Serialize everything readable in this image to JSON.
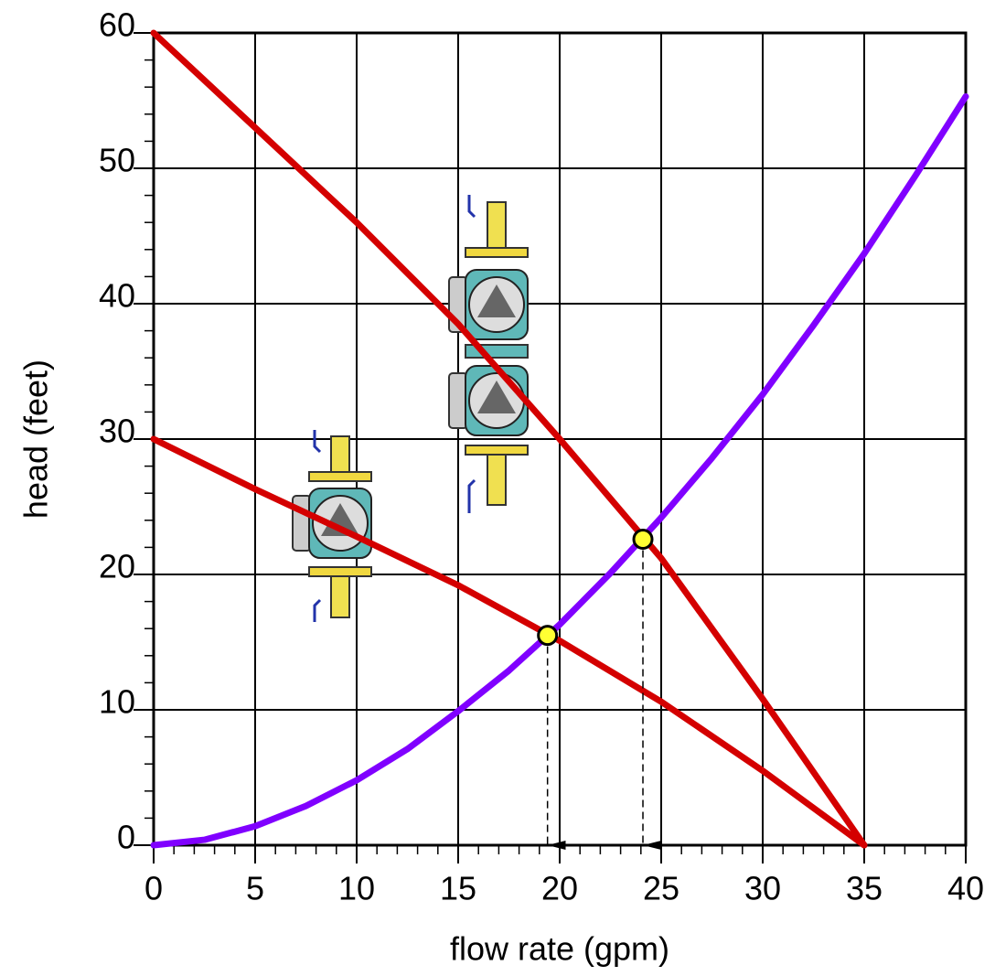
{
  "chart_data": {
    "type": "line",
    "x_label": "flow rate (gpm)",
    "y_label": "head (feet)",
    "xlim": [
      0,
      40
    ],
    "ylim": [
      0,
      60
    ],
    "xticks": [
      0,
      5,
      10,
      15,
      20,
      25,
      30,
      35,
      40
    ],
    "yticks": [
      0,
      10,
      20,
      30,
      40,
      50,
      60
    ],
    "grid": true,
    "series": [
      {
        "color": "#d40000",
        "x": [
          0,
          5,
          10,
          15,
          20,
          25,
          30,
          35
        ],
        "values": [
          30,
          26.3,
          22.8,
          19.2,
          15.1,
          10.6,
          5.5,
          0
        ]
      },
      {
        "color": "#d40000",
        "x": [
          0,
          5,
          10,
          15,
          20,
          25,
          30,
          35
        ],
        "values": [
          60,
          53,
          46,
          38.5,
          30,
          21.2,
          10.8,
          0
        ]
      },
      {
        "color": "#8000ff",
        "x": [
          0,
          2.5,
          5,
          7.5,
          10,
          12.5,
          15,
          17.5,
          20,
          22.5,
          25,
          27.5,
          30,
          32.5,
          35,
          37.5,
          40
        ],
        "values": [
          0,
          0.4,
          1.4,
          2.9,
          4.8,
          7.1,
          9.9,
          12.9,
          16.3,
          20.1,
          24.2,
          28.6,
          33.3,
          38.4,
          43.7,
          49.4,
          55.3
        ]
      }
    ],
    "points": {
      "color": "#ffff33",
      "x": [
        19.4,
        24.1
      ],
      "values": [
        15.5,
        22.6
      ]
    }
  }
}
